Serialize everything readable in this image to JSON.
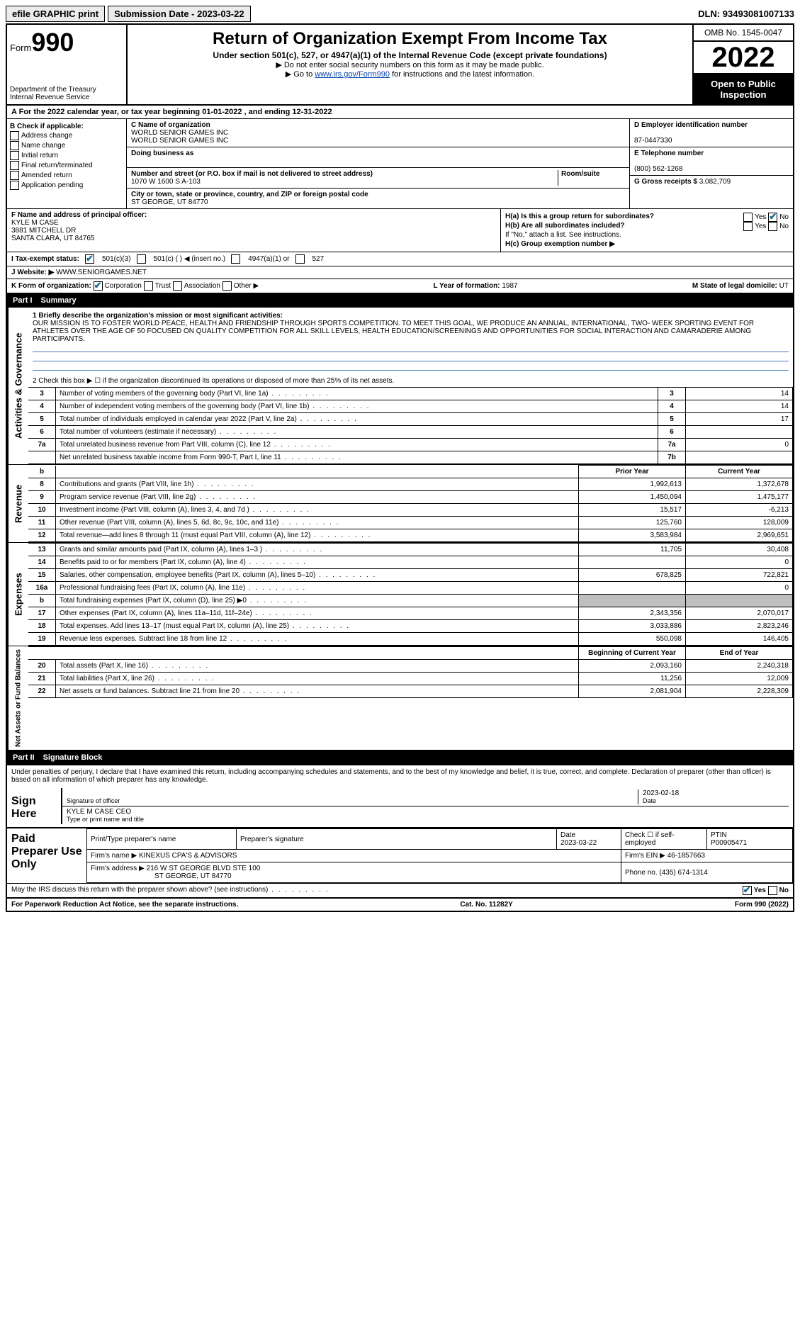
{
  "topbar": {
    "efile": "efile GRAPHIC print",
    "submission": "Submission Date - 2023-03-22",
    "dln": "DLN: 93493081007133"
  },
  "header": {
    "form_prefix": "Form",
    "form_number": "990",
    "dept": "Department of the Treasury\nInternal Revenue Service",
    "title": "Return of Organization Exempt From Income Tax",
    "subtitle": "Under section 501(c), 527, or 4947(a)(1) of the Internal Revenue Code (except private foundations)",
    "note1": "▶ Do not enter social security numbers on this form as it may be made public.",
    "note2_pre": "▶ Go to ",
    "note2_link": "www.irs.gov/Form990",
    "note2_post": " for instructions and the latest information.",
    "omb": "OMB No. 1545-0047",
    "year": "2022",
    "open": "Open to Public Inspection"
  },
  "rowA": "For the 2022 calendar year, or tax year beginning 01-01-2022   , and ending 12-31-2022",
  "colB": {
    "title": "B Check if applicable:",
    "items": [
      "Address change",
      "Name change",
      "Initial return",
      "Final return/terminated",
      "Amended return",
      "Application pending"
    ]
  },
  "colC": {
    "name_label": "C Name of organization",
    "name1": "WORLD SENIOR GAMES INC",
    "name2": "WORLD SENIOR GAMES INC",
    "dba_label": "Doing business as",
    "street_label": "Number and street (or P.O. box if mail is not delivered to street address)",
    "street": "1070 W 1600 S A-103",
    "room_label": "Room/suite",
    "city_label": "City or town, state or province, country, and ZIP or foreign postal code",
    "city": "ST GEORGE, UT  84770"
  },
  "colD": {
    "ein_label": "D Employer identification number",
    "ein": "87-0447330",
    "phone_label": "E Telephone number",
    "phone": "(800) 562-1268",
    "gross_label": "G Gross receipts $",
    "gross": "3,082,709"
  },
  "rowF": {
    "label": "F  Name and address of principal officer:",
    "name": "KYLE M CASE",
    "addr1": "3881 MITCHELL DR",
    "addr2": "SANTA CLARA, UT  84765"
  },
  "rowH": {
    "ha": "H(a)  Is this a group return for subordinates?",
    "hb": "H(b)  Are all subordinates included?",
    "hb_note": "If \"No,\" attach a list. See instructions.",
    "hc": "H(c)  Group exemption number ▶",
    "yes": "Yes",
    "no": "No"
  },
  "rowI": {
    "label": "I   Tax-exempt status:",
    "opt1": "501(c)(3)",
    "opt2": "501(c) (  ) ◀ (insert no.)",
    "opt3": "4947(a)(1) or",
    "opt4": "527"
  },
  "rowJ": {
    "label": "J   Website: ▶",
    "value": "WWW.SENIORGAMES.NET"
  },
  "rowK": {
    "label": "K Form of organization:",
    "opts": [
      "Corporation",
      "Trust",
      "Association",
      "Other ▶"
    ],
    "year_label": "L Year of formation:",
    "year": "1987",
    "state_label": "M State of legal domicile:",
    "state": "UT"
  },
  "part1": {
    "title": "Part I",
    "name": "Summary",
    "side_activities": "Activities & Governance",
    "side_revenue": "Revenue",
    "side_expenses": "Expenses",
    "side_net": "Net Assets or Fund Balances",
    "q1_label": "1  Briefly describe the organization's mission or most significant activities:",
    "q1_text": "OUR MISSION IS TO FOSTER WORLD PEACE, HEALTH AND FRIENDSHIP THROUGH SPORTS COMPETITION. TO MEET THIS GOAL, WE PRODUCE AN ANNUAL, INTERNATIONAL, TWO- WEEK SPORTING EVENT FOR ATHLETES OVER THE AGE OF 50 FOCUSED ON QUALITY COMPETITION FOR ALL SKILL LEVELS, HEALTH EDUCATION/SCREENINGS AND OPPORTUNITIES FOR SOCIAL INTERACTION AND CAMARADERIE AMONG PARTICIPANTS.",
    "q2": "2    Check this box ▶ ☐  if the organization discontinued its operations or disposed of more than 25% of its net assets.",
    "lines_single": [
      {
        "n": "3",
        "d": "Number of voting members of the governing body (Part VI, line 1a)",
        "box": "3",
        "v": "14"
      },
      {
        "n": "4",
        "d": "Number of independent voting members of the governing body (Part VI, line 1b)",
        "box": "4",
        "v": "14"
      },
      {
        "n": "5",
        "d": "Total number of individuals employed in calendar year 2022 (Part V, line 2a)",
        "box": "5",
        "v": "17"
      },
      {
        "n": "6",
        "d": "Total number of volunteers (estimate if necessary)",
        "box": "6",
        "v": ""
      },
      {
        "n": "7a",
        "d": "Total unrelated business revenue from Part VIII, column (C), line 12",
        "box": "7a",
        "v": "0"
      },
      {
        "n": "",
        "d": "Net unrelated business taxable income from Form 990-T, Part I, line 11",
        "box": "7b",
        "v": ""
      }
    ],
    "hdr_prior": "Prior Year",
    "hdr_current": "Current Year",
    "revenue": [
      {
        "n": "8",
        "d": "Contributions and grants (Part VIII, line 1h)",
        "p": "1,992,613",
        "c": "1,372,678"
      },
      {
        "n": "9",
        "d": "Program service revenue (Part VIII, line 2g)",
        "p": "1,450,094",
        "c": "1,475,177"
      },
      {
        "n": "10",
        "d": "Investment income (Part VIII, column (A), lines 3, 4, and 7d )",
        "p": "15,517",
        "c": "-6,213"
      },
      {
        "n": "11",
        "d": "Other revenue (Part VIII, column (A), lines 5, 6d, 8c, 9c, 10c, and 11e)",
        "p": "125,760",
        "c": "128,009"
      },
      {
        "n": "12",
        "d": "Total revenue—add lines 8 through 11 (must equal Part VIII, column (A), line 12)",
        "p": "3,583,984",
        "c": "2,969,651"
      }
    ],
    "expenses": [
      {
        "n": "13",
        "d": "Grants and similar amounts paid (Part IX, column (A), lines 1–3 )",
        "p": "11,705",
        "c": "30,408"
      },
      {
        "n": "14",
        "d": "Benefits paid to or for members (Part IX, column (A), line 4)",
        "p": "",
        "c": "0"
      },
      {
        "n": "15",
        "d": "Salaries, other compensation, employee benefits (Part IX, column (A), lines 5–10)",
        "p": "678,825",
        "c": "722,821"
      },
      {
        "n": "16a",
        "d": "Professional fundraising fees (Part IX, column (A), line 11e)",
        "p": "",
        "c": "0"
      },
      {
        "n": "b",
        "d": "Total fundraising expenses (Part IX, column (D), line 25) ▶0",
        "p": "shade",
        "c": "shade"
      },
      {
        "n": "17",
        "d": "Other expenses (Part IX, column (A), lines 11a–11d, 11f–24e)",
        "p": "2,343,356",
        "c": "2,070,017"
      },
      {
        "n": "18",
        "d": "Total expenses. Add lines 13–17 (must equal Part IX, column (A), line 25)",
        "p": "3,033,886",
        "c": "2,823,246"
      },
      {
        "n": "19",
        "d": "Revenue less expenses. Subtract line 18 from line 12",
        "p": "550,098",
        "c": "146,405"
      }
    ],
    "hdr_begin": "Beginning of Current Year",
    "hdr_end": "End of Year",
    "net": [
      {
        "n": "20",
        "d": "Total assets (Part X, line 16)",
        "p": "2,093,160",
        "c": "2,240,318"
      },
      {
        "n": "21",
        "d": "Total liabilities (Part X, line 26)",
        "p": "11,256",
        "c": "12,009"
      },
      {
        "n": "22",
        "d": "Net assets or fund balances. Subtract line 21 from line 20",
        "p": "2,081,904",
        "c": "2,228,309"
      }
    ]
  },
  "part2": {
    "title": "Part II",
    "name": "Signature Block",
    "perjury": "Under penalties of perjury, I declare that I have examined this return, including accompanying schedules and statements, and to the best of my knowledge and belief, it is true, correct, and complete. Declaration of preparer (other than officer) is based on all information of which preparer has any knowledge.",
    "sign_here": "Sign Here",
    "sig_officer": "Signature of officer",
    "sig_date": "Date",
    "sig_date_val": "2023-02-18",
    "sig_name": "KYLE M CASE CEO",
    "sig_name_label": "Type or print name and title",
    "paid": "Paid Preparer Use Only",
    "prep_name_label": "Print/Type preparer's name",
    "prep_sig_label": "Preparer's signature",
    "prep_date_label": "Date",
    "prep_date": "2023-03-22",
    "prep_check": "Check ☐ if self-employed",
    "ptin_label": "PTIN",
    "ptin": "P00905471",
    "firm_name_label": "Firm's name    ▶",
    "firm_name": "KINEXUS CPA'S & ADVISORS",
    "firm_ein_label": "Firm's EIN ▶",
    "firm_ein": "46-1857663",
    "firm_addr_label": "Firm's address ▶",
    "firm_addr1": "216 W ST GEORGE BLVD STE 100",
    "firm_addr2": "ST GEORGE, UT  84770",
    "firm_phone_label": "Phone no.",
    "firm_phone": "(435) 674-1314",
    "discuss": "May the IRS discuss this return with the preparer shown above? (see instructions)",
    "discuss_yes": "Yes",
    "discuss_no": "No"
  },
  "footer": {
    "left": "For Paperwork Reduction Act Notice, see the separate instructions.",
    "center": "Cat. No. 11282Y",
    "right_pre": "Form ",
    "right_form": "990",
    "right_post": " (2022)"
  }
}
